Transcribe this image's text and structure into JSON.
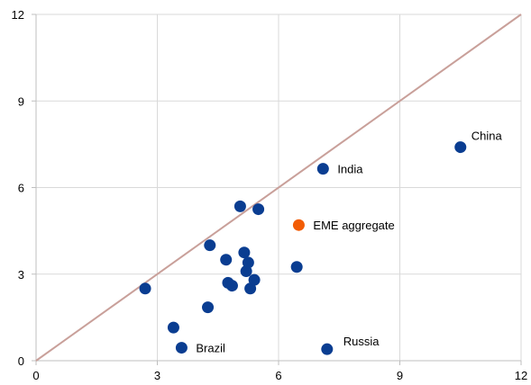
{
  "chart_data": {
    "type": "scatter",
    "title": "",
    "xlabel": "",
    "ylabel": "",
    "xlim": [
      0,
      12
    ],
    "ylim": [
      0,
      12
    ],
    "x_ticks": [
      "0",
      "3",
      "6",
      "9",
      "12"
    ],
    "y_ticks": [
      "0",
      "3",
      "6",
      "9",
      "12"
    ],
    "grid": true,
    "reference_line": {
      "from": [
        0,
        0
      ],
      "to": [
        12,
        12
      ],
      "color": "#c9a09a"
    },
    "colors": {
      "points": "#0a3d91",
      "highlight": "#f25c05"
    },
    "points": [
      {
        "x": 2.7,
        "y": 2.5
      },
      {
        "x": 3.4,
        "y": 1.15
      },
      {
        "x": 3.6,
        "y": 0.45,
        "label": "Brazil"
      },
      {
        "x": 4.25,
        "y": 1.85
      },
      {
        "x": 4.3,
        "y": 4.0
      },
      {
        "x": 4.7,
        "y": 3.5
      },
      {
        "x": 4.75,
        "y": 2.7
      },
      {
        "x": 4.85,
        "y": 2.6
      },
      {
        "x": 5.05,
        "y": 5.35
      },
      {
        "x": 5.15,
        "y": 3.75
      },
      {
        "x": 5.2,
        "y": 3.1
      },
      {
        "x": 5.25,
        "y": 3.4
      },
      {
        "x": 5.3,
        "y": 2.5
      },
      {
        "x": 5.4,
        "y": 2.8
      },
      {
        "x": 5.5,
        "y": 5.25
      },
      {
        "x": 6.45,
        "y": 3.25
      },
      {
        "x": 7.1,
        "y": 6.65,
        "label": "India"
      },
      {
        "x": 7.2,
        "y": 0.4,
        "label": "Russia"
      },
      {
        "x": 10.5,
        "y": 7.4,
        "label": "China"
      },
      {
        "x": 6.5,
        "y": 4.7,
        "label": "EME aggregate",
        "highlight": true
      }
    ]
  }
}
